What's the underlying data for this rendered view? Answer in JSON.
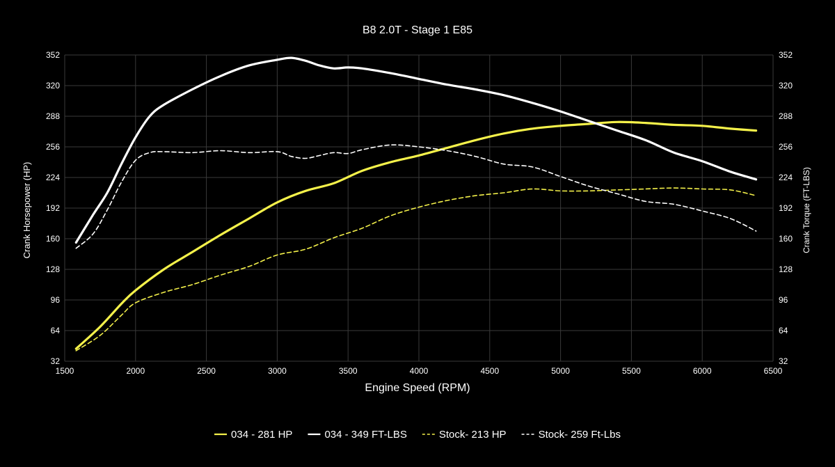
{
  "chart_data": {
    "type": "line",
    "title": "B8 2.0T - Stage 1 E85",
    "xlabel": "Engine Speed (RPM)",
    "ylabel": "Crank Horsepower (HP)",
    "ylabel_right": "Crank Torque (FT-LBS)",
    "xlim": [
      1500,
      6500
    ],
    "ylim": [
      32,
      352
    ],
    "ylim_right": [
      32,
      352
    ],
    "x_ticks": [
      1500,
      2000,
      2500,
      3000,
      3500,
      4000,
      4500,
      5000,
      5500,
      6000,
      6500
    ],
    "y_ticks": [
      32,
      64,
      96,
      128,
      160,
      192,
      224,
      256,
      288,
      320,
      352
    ],
    "y_ticks_right": [
      32,
      64,
      96,
      128,
      160,
      192,
      224,
      256,
      288,
      320,
      352
    ],
    "grid": true,
    "background": "#000000",
    "legend_position": "bottom-center",
    "series": [
      {
        "name": "034 - 281 HP",
        "axis": "left",
        "color": "#f4f14a",
        "style": "solid",
        "x": [
          1580,
          1750,
          1900,
          2000,
          2200,
          2400,
          2600,
          2800,
          3000,
          3200,
          3400,
          3600,
          3800,
          4000,
          4200,
          4400,
          4600,
          4800,
          5000,
          5200,
          5400,
          5600,
          5800,
          6000,
          6200,
          6380
        ],
        "y": [
          45,
          68,
          92,
          106,
          128,
          146,
          164,
          181,
          198,
          210,
          218,
          231,
          240,
          247,
          255,
          263,
          270,
          275,
          278,
          280,
          282,
          281,
          279,
          278,
          275,
          273
        ]
      },
      {
        "name": "034 - 349 FT-LBS",
        "axis": "right",
        "color": "#ffffff",
        "style": "solid",
        "x": [
          1580,
          1700,
          1800,
          1900,
          2000,
          2100,
          2200,
          2400,
          2600,
          2800,
          3000,
          3100,
          3200,
          3300,
          3400,
          3500,
          3600,
          3800,
          4000,
          4200,
          4400,
          4600,
          4800,
          5000,
          5200,
          5400,
          5600,
          5800,
          6000,
          6200,
          6380
        ],
        "y": [
          156,
          185,
          208,
          238,
          266,
          288,
          300,
          316,
          330,
          341,
          347,
          349,
          346,
          341,
          338,
          339,
          338,
          333,
          327,
          321,
          316,
          310,
          302,
          293,
          283,
          273,
          263,
          250,
          241,
          230,
          222
        ]
      },
      {
        "name": "Stock- 213 HP",
        "axis": "left",
        "color": "#f4f14a",
        "style": "dashed",
        "x": [
          1580,
          1750,
          1900,
          2000,
          2200,
          2400,
          2600,
          2800,
          3000,
          3200,
          3400,
          3600,
          3800,
          4000,
          4200,
          4400,
          4600,
          4800,
          5000,
          5200,
          5400,
          5600,
          5800,
          6000,
          6200,
          6380
        ],
        "y": [
          43,
          59,
          80,
          93,
          104,
          112,
          122,
          131,
          143,
          149,
          161,
          171,
          184,
          193,
          200,
          205,
          208,
          212,
          210,
          210,
          211,
          212,
          213,
          212,
          211,
          205
        ]
      },
      {
        "name": "Stock- 259 Ft-Lbs",
        "axis": "right",
        "color": "#ffffff",
        "style": "dashed",
        "x": [
          1580,
          1700,
          1800,
          1900,
          2000,
          2100,
          2200,
          2400,
          2600,
          2800,
          3000,
          3100,
          3200,
          3300,
          3400,
          3500,
          3600,
          3800,
          4000,
          4200,
          4400,
          4600,
          4800,
          5000,
          5200,
          5400,
          5600,
          5800,
          6000,
          6200,
          6380
        ],
        "y": [
          150,
          165,
          190,
          219,
          242,
          250,
          251,
          250,
          252,
          250,
          251,
          246,
          244,
          247,
          250,
          249,
          253,
          258,
          256,
          252,
          246,
          238,
          235,
          225,
          215,
          207,
          199,
          196,
          189,
          181,
          168
        ]
      }
    ]
  }
}
